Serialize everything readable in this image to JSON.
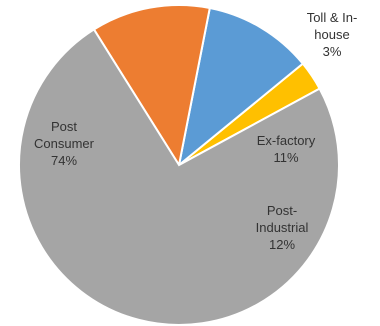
{
  "chart_data": {
    "type": "pie",
    "slices": [
      {
        "label_lines": [
          "Toll & In-",
          "house"
        ],
        "pct_text": "3%",
        "value": 3,
        "color": "#ffc000"
      },
      {
        "label_lines": [
          "Ex-factory"
        ],
        "pct_text": "11%",
        "value": 11,
        "color": "#5b9bd5"
      },
      {
        "label_lines": [
          "Post-",
          "Industrial"
        ],
        "pct_text": "12%",
        "value": 12,
        "color": "#ed7d31"
      },
      {
        "label_lines": [
          "Post",
          "Consumer"
        ],
        "pct_text": "74%",
        "value": 74,
        "color": "#a5a5a5"
      }
    ],
    "start_angle_deg": 28.5,
    "direction": "counterclockwise",
    "legend": "none"
  }
}
